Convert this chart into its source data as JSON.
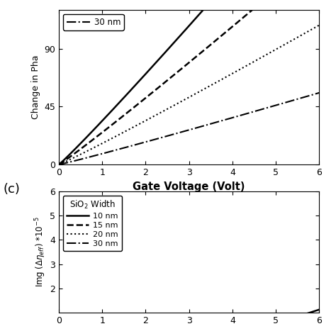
{
  "panel_label_bottom": "(c)",
  "top_panel": {
    "xlabel": "Gate Voltage (Volt)",
    "ylabel": "Change in Pha",
    "xlim": [
      0,
      6
    ],
    "ylim": [
      0,
      120
    ],
    "yticks": [
      0,
      45,
      90
    ],
    "xticks": [
      0,
      1,
      2,
      3,
      4,
      5,
      6
    ],
    "curves": [
      {
        "label": "10 nm",
        "style": "solid",
        "lw": 1.8,
        "slope": 34.0,
        "power": 1.0
      },
      {
        "label": "15 nm",
        "style": "dashed",
        "lw": 1.8,
        "slope": 25.0,
        "power": 1.0
      },
      {
        "label": "20 nm",
        "style": "dotted",
        "lw": 1.5,
        "slope": 16.5,
        "power": 1.0
      },
      {
        "label": "30 nm",
        "style": "dashdot",
        "lw": 1.5,
        "slope": 8.5,
        "power": 1.0
      }
    ],
    "legend_show_label": "30 nm",
    "legend_style": "dashdot"
  },
  "bottom_panel": {
    "xlim": [
      0,
      6
    ],
    "ylim": [
      1,
      6
    ],
    "yticks": [
      2,
      3,
      4,
      5,
      6
    ],
    "xticks": [
      0,
      1,
      2,
      3,
      4,
      5,
      6
    ],
    "legend_title": "SiO$_2$ Width",
    "curves": [
      {
        "label": "10 nm",
        "style": "solid",
        "lw": 1.8,
        "a": 0.155,
        "b": 1.7,
        "x0": 2.8
      },
      {
        "label": "15 nm",
        "style": "dashed",
        "lw": 1.8,
        "a": 0.105,
        "b": 1.7,
        "x0": 2.8
      },
      {
        "label": "20 nm",
        "style": "dotted",
        "lw": 1.5,
        "a": 0.065,
        "b": 1.7,
        "x0": 2.8
      },
      {
        "label": "30 nm",
        "style": "dashdot",
        "lw": 1.5,
        "a": 0.038,
        "b": 1.7,
        "x0": 2.8
      }
    ]
  },
  "background_color": "#ffffff",
  "line_color": "#000000"
}
